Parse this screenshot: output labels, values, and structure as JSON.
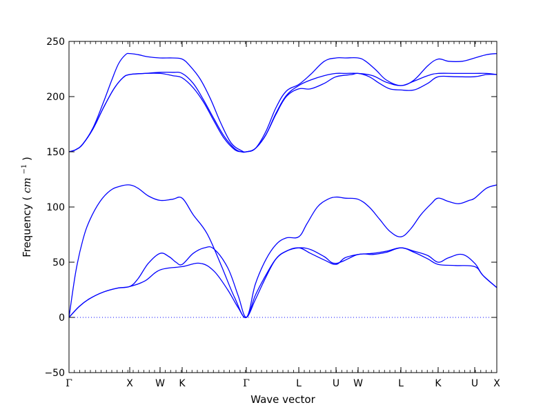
{
  "chart_data": {
    "type": "line",
    "xlabel": "Wave vector",
    "ylabel": "Frequency",
    "ylabel_unit_base": "cm",
    "ylabel_unit_exp": "−1",
    "ylim": [
      -50,
      250
    ],
    "y_ticks": [
      -50,
      0,
      50,
      100,
      150,
      200,
      250
    ],
    "xlim": [
      0,
      6.2
    ],
    "x_ticks": [
      {
        "pos": 0.0,
        "label": "Γ"
      },
      {
        "pos": 0.88,
        "label": "X"
      },
      {
        "pos": 1.32,
        "label": "W"
      },
      {
        "pos": 1.64,
        "label": "K"
      },
      {
        "pos": 2.57,
        "label": "Γ"
      },
      {
        "pos": 3.33,
        "label": "L"
      },
      {
        "pos": 3.87,
        "label": "U"
      },
      {
        "pos": 4.19,
        "label": "W"
      },
      {
        "pos": 4.81,
        "label": "L"
      },
      {
        "pos": 5.35,
        "label": "K"
      },
      {
        "pos": 5.88,
        "label": "U"
      },
      {
        "pos": 6.2,
        "label": "X"
      }
    ],
    "zero_line": {
      "style": "dotted",
      "color": "#0000ff"
    },
    "line_color": "#0000ff",
    "series": [
      {
        "x": [
          0,
          0.15,
          0.3,
          0.5,
          0.7,
          0.88,
          1.1,
          1.32,
          1.64,
          1.9,
          2.1,
          2.3,
          2.45,
          2.57,
          2.7,
          2.85,
          3.0,
          3.15,
          3.33,
          3.5,
          3.7,
          3.87,
          4.19,
          4.4,
          4.6,
          4.81,
          5.0,
          5.2,
          5.35,
          5.6,
          5.88,
          6.0,
          6.2
        ],
        "values": [
          0,
          10,
          17,
          23,
          26.5,
          28,
          33,
          43,
          46,
          49,
          42,
          25,
          9,
          0,
          16,
          36,
          53,
          60,
          63,
          61.5,
          55,
          49,
          57,
          57,
          59,
          63,
          59,
          53,
          48,
          47,
          46,
          38,
          27
        ]
      },
      {
        "x": [
          0,
          0.15,
          0.3,
          0.5,
          0.7,
          0.88,
          1.0,
          1.15,
          1.32,
          1.45,
          1.55,
          1.64,
          1.8,
          1.96,
          2.1,
          2.3,
          2.45,
          2.57,
          2.7,
          2.85,
          3.0,
          3.15,
          3.33,
          3.5,
          3.7,
          3.87,
          4.0,
          4.19,
          4.4,
          4.6,
          4.81,
          5.0,
          5.2,
          5.35,
          5.5,
          5.7,
          5.88,
          6.0,
          6.2
        ],
        "values": [
          0,
          10,
          17,
          23,
          26.5,
          28,
          35,
          49,
          58,
          55,
          50,
          48,
          58,
          63,
          62,
          45,
          20,
          0,
          20,
          38,
          53,
          60,
          63,
          58,
          52,
          48,
          54,
          57,
          58,
          60,
          63,
          60,
          56,
          50,
          54,
          57,
          49,
          38,
          27
        ]
      },
      {
        "x": [
          0,
          0.1,
          0.2,
          0.3,
          0.45,
          0.6,
          0.75,
          0.88,
          1.0,
          1.15,
          1.32,
          1.5,
          1.64,
          1.8,
          2.0,
          2.2,
          2.4,
          2.57,
          2.7,
          2.85,
          3.0,
          3.15,
          3.33,
          3.45,
          3.6,
          3.75,
          3.87,
          4.0,
          4.19,
          4.35,
          4.5,
          4.65,
          4.81,
          4.95,
          5.1,
          5.25,
          5.35,
          5.5,
          5.65,
          5.8,
          5.88,
          6.05,
          6.2
        ],
        "values": [
          0,
          42,
          70,
          88,
          105,
          115,
          119,
          120,
          117,
          110,
          106,
          107,
          108,
          93,
          76,
          48,
          18,
          0,
          30,
          52,
          66,
          72,
          73,
          85,
          100,
          107,
          109,
          108,
          107,
          100,
          89,
          78,
          73,
          80,
          93,
          103,
          108,
          105,
          103,
          106,
          108,
          117,
          120
        ]
      },
      {
        "x": [
          0,
          0.1,
          0.2,
          0.35,
          0.5,
          0.65,
          0.78,
          0.88,
          1.1,
          1.32,
          1.5,
          1.64,
          1.8,
          1.95,
          2.1,
          2.25,
          2.4,
          2.5,
          2.57,
          2.7,
          2.85,
          3.0,
          3.15,
          3.33,
          3.5,
          3.7,
          3.87,
          4.1,
          4.19,
          4.35,
          4.5,
          4.65,
          4.81,
          5.0,
          5.2,
          5.35,
          5.6,
          5.88,
          6.05,
          6.2
        ],
        "values": [
          150,
          152,
          157,
          171,
          190,
          207,
          217,
          220,
          221,
          221,
          219,
          217,
          208,
          195,
          178,
          162,
          152,
          150,
          150,
          153,
          165,
          184,
          200,
          207,
          207,
          212,
          218,
          220,
          221,
          218,
          212,
          207,
          206,
          206,
          212,
          218,
          218,
          218,
          220,
          220
        ]
      },
      {
        "x": [
          0,
          0.1,
          0.2,
          0.35,
          0.5,
          0.65,
          0.78,
          0.88,
          1.1,
          1.32,
          1.5,
          1.64,
          1.8,
          1.95,
          2.1,
          2.25,
          2.4,
          2.5,
          2.57,
          2.7,
          2.85,
          3.0,
          3.15,
          3.33,
          3.5,
          3.7,
          3.87,
          4.0,
          4.19,
          4.4,
          4.6,
          4.81,
          5.0,
          5.2,
          5.35,
          5.6,
          5.88,
          6.05,
          6.2
        ],
        "values": [
          150,
          152,
          157,
          171,
          190,
          207,
          217,
          220,
          221,
          222,
          222,
          221,
          212,
          197,
          180,
          164,
          153,
          150,
          150,
          153,
          165,
          185,
          201,
          210,
          215,
          219,
          221,
          221,
          221,
          219,
          213,
          210,
          214,
          219,
          221,
          221,
          221,
          221,
          220
        ]
      },
      {
        "x": [
          0,
          0.1,
          0.2,
          0.35,
          0.5,
          0.62,
          0.72,
          0.82,
          0.88,
          1.0,
          1.15,
          1.32,
          1.5,
          1.64,
          1.75,
          1.9,
          2.05,
          2.2,
          2.35,
          2.5,
          2.57,
          2.7,
          2.85,
          3.0,
          3.15,
          3.33,
          3.5,
          3.7,
          3.87,
          4.0,
          4.19,
          4.3,
          4.45,
          4.6,
          4.81,
          5.0,
          5.2,
          5.35,
          5.5,
          5.7,
          5.88,
          6.05,
          6.2
        ],
        "values": [
          150,
          152,
          157,
          172,
          195,
          215,
          230,
          238,
          239,
          238,
          236,
          235,
          235,
          234,
          228,
          216,
          198,
          176,
          158,
          151,
          150,
          153,
          168,
          190,
          205,
          211,
          220,
          232,
          235,
          235,
          235,
          232,
          224,
          215,
          210,
          215,
          228,
          234,
          232,
          232,
          235,
          238,
          239
        ]
      }
    ]
  }
}
